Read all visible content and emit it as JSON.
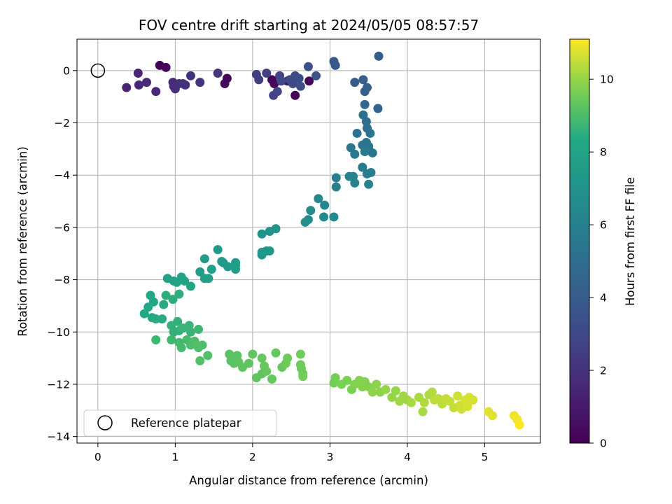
{
  "chart_data": {
    "type": "scatter",
    "title": "FOV centre drift starting at 2024/05/05 08:57:57",
    "xlabel": "Angular distance from reference (arcmin)",
    "ylabel": "Rotation from reference (arcmin)",
    "xlim": [
      -0.27,
      5.72
    ],
    "ylim": [
      -14.25,
      1.2
    ],
    "xticks": [
      0,
      1,
      2,
      3,
      4,
      5
    ],
    "yticks": [
      0,
      -2,
      -4,
      -6,
      -8,
      -10,
      -12,
      -14
    ],
    "grid": true,
    "legend": {
      "placement": "lower-left",
      "entries": [
        "Reference platepar"
      ]
    },
    "reference_point": {
      "x": 0,
      "y": 0
    },
    "colorbar": {
      "label": "Hours from first FF file",
      "colormap": "viridis",
      "range": [
        0,
        11.1
      ],
      "ticks": [
        0,
        2,
        4,
        6,
        8,
        10
      ]
    },
    "series": [
      {
        "points": [
          [
            0.8,
            0.2,
            0.1
          ],
          [
            0.88,
            0.12,
            0.15
          ],
          [
            1.67,
            -0.3,
            0.2
          ],
          [
            1.64,
            -0.5,
            0.25
          ],
          [
            2.28,
            -0.5,
            0.2
          ],
          [
            2.25,
            -0.35,
            0.25
          ],
          [
            2.55,
            -0.95,
            0.1
          ],
          [
            2.73,
            -0.4,
            0.3
          ],
          [
            2.45,
            -0.4,
            0.4
          ],
          [
            0.37,
            -0.65,
            1.3
          ],
          [
            0.52,
            -0.1,
            1.4
          ],
          [
            0.53,
            -0.55,
            1.5
          ],
          [
            0.63,
            -0.45,
            1.6
          ],
          [
            0.75,
            -0.8,
            1.6
          ],
          [
            0.97,
            -0.45,
            1.7
          ],
          [
            0.98,
            -0.6,
            1.8
          ],
          [
            1.0,
            -0.7,
            1.8
          ],
          [
            1.05,
            -0.5,
            1.9
          ],
          [
            1.1,
            -0.5,
            1.9
          ],
          [
            1.13,
            -0.55,
            2.0
          ],
          [
            1.2,
            -0.2,
            2.0
          ],
          [
            1.32,
            -0.45,
            2.1
          ],
          [
            1.55,
            -0.1,
            2.2
          ],
          [
            2.05,
            -0.15,
            2.5
          ],
          [
            2.08,
            -0.35,
            2.5
          ],
          [
            2.18,
            -0.1,
            2.6
          ],
          [
            2.27,
            -0.95,
            2.7
          ],
          [
            2.32,
            -0.8,
            2.8
          ],
          [
            2.35,
            -0.2,
            2.8
          ],
          [
            2.37,
            -0.4,
            3.0
          ],
          [
            2.48,
            -0.35,
            3.0
          ],
          [
            2.52,
            -0.5,
            3.1
          ],
          [
            2.55,
            -0.2,
            3.2
          ],
          [
            2.6,
            -0.3,
            3.3
          ],
          [
            2.62,
            -0.6,
            3.3
          ],
          [
            2.72,
            0.15,
            3.4
          ],
          [
            2.82,
            -0.2,
            3.5
          ],
          [
            3.05,
            0.35,
            3.8
          ],
          [
            3.07,
            0.2,
            3.8
          ],
          [
            3.32,
            -0.45,
            4.0
          ],
          [
            3.43,
            -0.35,
            4.1
          ],
          [
            3.45,
            -0.8,
            4.2
          ],
          [
            3.48,
            -0.65,
            4.2
          ],
          [
            3.62,
            -1.45,
            4.5
          ],
          [
            3.63,
            0.55,
            4.0
          ],
          [
            3.45,
            -1.3,
            4.6
          ],
          [
            3.43,
            -1.7,
            5.0
          ],
          [
            3.47,
            -1.95,
            5.0
          ],
          [
            3.48,
            -2.2,
            5.1
          ],
          [
            3.52,
            -2.4,
            5.2
          ],
          [
            3.35,
            -2.4,
            5.2
          ],
          [
            3.42,
            -2.85,
            5.3
          ],
          [
            3.47,
            -2.75,
            5.3
          ],
          [
            3.5,
            -2.9,
            5.4
          ],
          [
            3.55,
            -3.15,
            5.4
          ],
          [
            3.27,
            -2.95,
            5.5
          ],
          [
            3.32,
            -3.2,
            5.5
          ],
          [
            3.45,
            -3.1,
            5.6
          ],
          [
            3.42,
            -3.7,
            5.7
          ],
          [
            3.48,
            -3.95,
            5.8
          ],
          [
            3.53,
            -3.9,
            5.8
          ],
          [
            3.08,
            -4.1,
            5.9
          ],
          [
            3.08,
            -4.45,
            5.9
          ],
          [
            3.25,
            -4.05,
            6.0
          ],
          [
            3.3,
            -4.05,
            6.0
          ],
          [
            3.32,
            -4.3,
            6.1
          ],
          [
            3.5,
            -4.35,
            6.1
          ],
          [
            2.85,
            -4.9,
            6.4
          ],
          [
            2.93,
            -5.15,
            6.4
          ],
          [
            2.92,
            -5.6,
            6.5
          ],
          [
            3.05,
            -5.6,
            6.6
          ],
          [
            2.75,
            -5.35,
            6.6
          ],
          [
            2.72,
            -5.7,
            6.7
          ],
          [
            2.68,
            -5.8,
            6.8
          ],
          [
            2.12,
            -6.25,
            7.0
          ],
          [
            2.22,
            -6.15,
            7.0
          ],
          [
            2.3,
            -6.05,
            7.1
          ],
          [
            2.12,
            -6.95,
            7.2
          ],
          [
            2.18,
            -6.9,
            7.2
          ],
          [
            2.22,
            -6.9,
            7.3
          ],
          [
            2.12,
            -7.05,
            7.3
          ],
          [
            1.55,
            -6.85,
            7.4
          ],
          [
            1.6,
            -7.3,
            7.4
          ],
          [
            1.62,
            -7.35,
            7.5
          ],
          [
            1.68,
            -7.5,
            7.5
          ],
          [
            1.78,
            -7.35,
            7.6
          ],
          [
            1.78,
            -7.45,
            7.6
          ],
          [
            1.78,
            -7.6,
            7.7
          ],
          [
            1.38,
            -7.2,
            7.6
          ],
          [
            1.32,
            -7.7,
            7.7
          ],
          [
            1.38,
            -7.95,
            7.7
          ],
          [
            1.43,
            -7.95,
            7.8
          ],
          [
            1.47,
            -7.6,
            7.8
          ],
          [
            0.9,
            -7.95,
            7.9
          ],
          [
            0.98,
            -8.05,
            7.9
          ],
          [
            1.02,
            -8.1,
            8.0
          ],
          [
            1.08,
            -7.9,
            8.0
          ],
          [
            1.12,
            -8.05,
            8.0
          ],
          [
            1.2,
            -8.25,
            8.1
          ],
          [
            0.68,
            -8.6,
            8.2
          ],
          [
            0.72,
            -8.85,
            8.2
          ],
          [
            0.65,
            -9.05,
            8.3
          ],
          [
            0.6,
            -9.3,
            8.3
          ],
          [
            0.7,
            -9.45,
            8.3
          ],
          [
            0.75,
            -9.5,
            8.4
          ],
          [
            0.83,
            -9.5,
            8.4
          ],
          [
            0.85,
            -8.95,
            8.4
          ],
          [
            0.88,
            -8.6,
            8.5
          ],
          [
            0.97,
            -8.75,
            8.5
          ],
          [
            1.05,
            -8.55,
            8.5
          ],
          [
            0.95,
            -9.75,
            8.6
          ],
          [
            0.98,
            -10.0,
            8.6
          ],
          [
            1.03,
            -9.6,
            8.6
          ],
          [
            1.05,
            -9.95,
            8.6
          ],
          [
            1.1,
            -9.85,
            8.7
          ],
          [
            1.18,
            -9.75,
            8.7
          ],
          [
            1.2,
            -10.0,
            8.7
          ],
          [
            1.3,
            -9.9,
            8.8
          ],
          [
            0.75,
            -10.3,
            8.8
          ],
          [
            0.95,
            -10.3,
            8.8
          ],
          [
            1.05,
            -10.4,
            8.9
          ],
          [
            1.08,
            -10.6,
            8.9
          ],
          [
            1.15,
            -10.3,
            8.9
          ],
          [
            1.2,
            -10.5,
            9.0
          ],
          [
            1.25,
            -10.35,
            9.0
          ],
          [
            1.3,
            -10.6,
            9.0
          ],
          [
            1.35,
            -10.5,
            9.0
          ],
          [
            1.32,
            -11.1,
            9.1
          ],
          [
            1.42,
            -10.9,
            9.1
          ],
          [
            1.28,
            -10.5,
            9.1
          ],
          [
            1.7,
            -10.85,
            9.2
          ],
          [
            1.72,
            -11.1,
            9.2
          ],
          [
            1.76,
            -11.2,
            9.2
          ],
          [
            1.8,
            -10.9,
            9.2
          ],
          [
            1.82,
            -11.15,
            9.3
          ],
          [
            1.87,
            -11.35,
            9.3
          ],
          [
            1.95,
            -11.2,
            9.3
          ],
          [
            2.0,
            -10.85,
            9.3
          ],
          [
            2.05,
            -11.75,
            9.3
          ],
          [
            2.12,
            -11.6,
            9.3
          ],
          [
            2.12,
            -11.0,
            9.4
          ],
          [
            2.15,
            -11.3,
            9.4
          ],
          [
            2.18,
            -11.5,
            9.4
          ],
          [
            2.25,
            -11.8,
            9.4
          ],
          [
            2.3,
            -10.8,
            9.4
          ],
          [
            2.38,
            -11.35,
            9.4
          ],
          [
            2.43,
            -11.2,
            9.5
          ],
          [
            2.45,
            -11.0,
            9.5
          ],
          [
            2.62,
            -10.85,
            9.5
          ],
          [
            2.62,
            -11.25,
            9.5
          ],
          [
            2.63,
            -11.4,
            9.5
          ],
          [
            2.65,
            -11.6,
            9.5
          ],
          [
            2.65,
            -11.7,
            9.6
          ],
          [
            3.05,
            -11.95,
            9.6
          ],
          [
            3.07,
            -11.75,
            9.6
          ],
          [
            3.15,
            -12.0,
            9.7
          ],
          [
            3.22,
            -11.85,
            9.7
          ],
          [
            3.28,
            -12.2,
            9.7
          ],
          [
            3.32,
            -12.0,
            9.8
          ],
          [
            3.38,
            -11.85,
            9.8
          ],
          [
            3.42,
            -12.1,
            9.8
          ],
          [
            3.45,
            -11.9,
            9.8
          ],
          [
            3.5,
            -12.1,
            9.8
          ],
          [
            3.55,
            -12.3,
            9.9
          ],
          [
            3.6,
            -12.0,
            9.9
          ],
          [
            3.65,
            -12.3,
            9.9
          ],
          [
            3.72,
            -12.2,
            10.0
          ],
          [
            3.8,
            -12.5,
            10.0
          ],
          [
            3.85,
            -12.25,
            10.0
          ],
          [
            3.9,
            -12.65,
            10.1
          ],
          [
            3.95,
            -12.45,
            10.1
          ],
          [
            4.0,
            -12.6,
            10.1
          ],
          [
            4.05,
            -12.7,
            10.2
          ],
          [
            4.15,
            -12.5,
            10.2
          ],
          [
            4.2,
            -13.05,
            10.2
          ],
          [
            4.22,
            -12.7,
            10.3
          ],
          [
            4.28,
            -12.4,
            10.3
          ],
          [
            4.32,
            -12.3,
            10.3
          ],
          [
            4.35,
            -12.6,
            10.4
          ],
          [
            4.4,
            -12.55,
            10.4
          ],
          [
            4.45,
            -12.75,
            10.4
          ],
          [
            4.5,
            -12.55,
            10.5
          ],
          [
            4.55,
            -12.65,
            10.5
          ],
          [
            4.6,
            -12.9,
            10.5
          ],
          [
            4.65,
            -12.45,
            10.6
          ],
          [
            4.68,
            -12.8,
            10.6
          ],
          [
            4.7,
            -12.95,
            10.6
          ],
          [
            4.75,
            -12.6,
            10.7
          ],
          [
            4.78,
            -12.85,
            10.7
          ],
          [
            4.8,
            -12.5,
            10.7
          ],
          [
            4.85,
            -12.6,
            10.7
          ],
          [
            5.05,
            -13.05,
            10.8
          ],
          [
            5.1,
            -13.2,
            10.8
          ],
          [
            5.38,
            -13.2,
            10.9
          ],
          [
            5.42,
            -13.35,
            11.0
          ],
          [
            5.45,
            -13.55,
            11.1
          ]
        ]
      }
    ]
  }
}
